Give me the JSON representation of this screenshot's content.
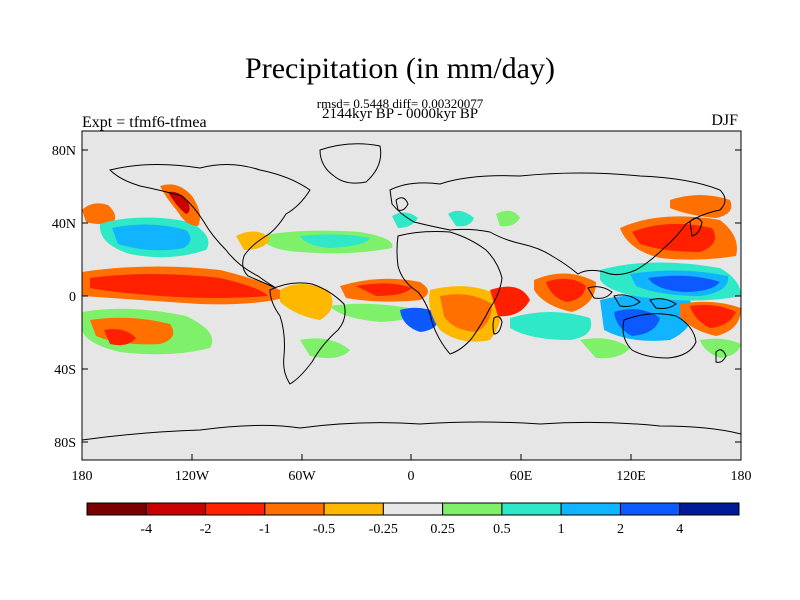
{
  "title": "Precipitation (in mm/day)",
  "stats": "rmsd= 0.5448 diff= 0.00320077",
  "period": "2144kyr BP - 0000kyr BP",
  "experiment": "Expt = tfmf6-tfmea",
  "season": "DJF",
  "lat_ticks": [
    "80N",
    "40N",
    "0",
    "40S",
    "80S"
  ],
  "lon_ticks": [
    "180",
    "120W",
    "60W",
    "0",
    "60E",
    "120E",
    "180"
  ],
  "colorbar": {
    "colors": [
      "#7a0000",
      "#c80000",
      "#ff2000",
      "#ff7000",
      "#ffb800",
      "#e8e8e8",
      "#7ef06a",
      "#2ee8c8",
      "#10b4ff",
      "#0c5aff",
      "#001a9a"
    ],
    "labels": [
      "-4",
      "-2",
      "-1",
      "-0.5",
      "-0.25",
      "0.25",
      "0.5",
      "1",
      "2",
      "4"
    ]
  },
  "background_color": "#e6e6e6"
}
